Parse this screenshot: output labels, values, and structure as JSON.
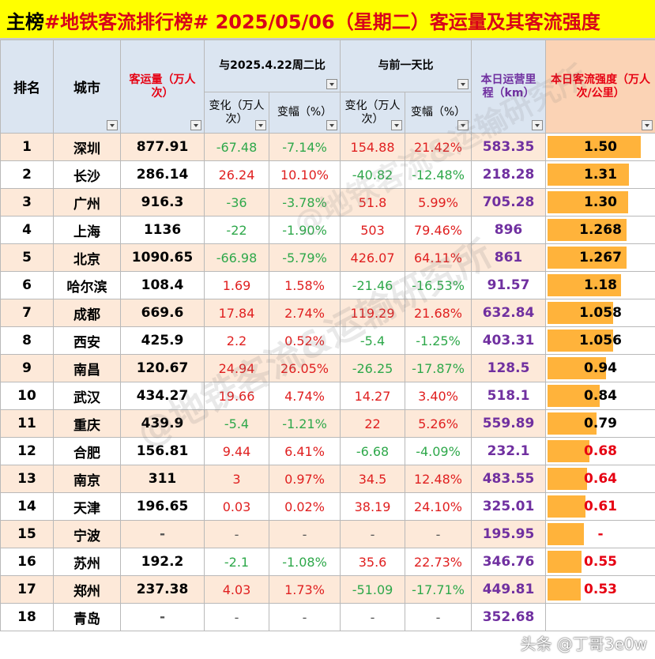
{
  "title": {
    "part1": "主榜",
    "part2": "#地铁客流排行榜# 2025/05/06（星期二）客运量及其客流强度"
  },
  "headers": {
    "rank": "排名",
    "city": "城市",
    "volume": "客运量（万人次）",
    "cmp1": "与2025.4.22周二比",
    "cmp2": "与前一天比",
    "change": "变化（万人次）",
    "pct": "变幅（%）",
    "mileage": "本日运营里程（km）",
    "intensity": "本日客流强度（万人次/公里）"
  },
  "rows": [
    {
      "rank": "1",
      "city": "深圳",
      "volume": "877.91",
      "c1": "-67.48",
      "p1": "-7.14%",
      "c2": "154.88",
      "p2": "21.42%",
      "mileage": "583.35",
      "intensity": "1.50",
      "level": 1.5,
      "ic": "#000000"
    },
    {
      "rank": "2",
      "city": "长沙",
      "volume": "286.14",
      "c1": "26.24",
      "p1": "10.10%",
      "c2": "-40.82",
      "p2": "-12.48%",
      "mileage": "218.28",
      "intensity": "1.31",
      "level": 1.31,
      "ic": "#000000"
    },
    {
      "rank": "3",
      "city": "广州",
      "volume": "916.3",
      "c1": "-36",
      "p1": "-3.78%",
      "c2": "51.8",
      "p2": "5.99%",
      "mileage": "705.28",
      "intensity": "1.30",
      "level": 1.3,
      "ic": "#000000"
    },
    {
      "rank": "4",
      "city": "上海",
      "volume": "1136",
      "c1": "-22",
      "p1": "-1.90%",
      "c2": "503",
      "p2": "79.46%",
      "mileage": "896",
      "intensity": "1.268",
      "level": 1.268,
      "ic": "#000000"
    },
    {
      "rank": "5",
      "city": "北京",
      "volume": "1090.65",
      "c1": "-66.98",
      "p1": "-5.79%",
      "c2": "426.07",
      "p2": "64.11%",
      "mileage": "861",
      "intensity": "1.267",
      "level": 1.267,
      "ic": "#000000"
    },
    {
      "rank": "6",
      "city": "哈尔滨",
      "volume": "108.4",
      "c1": "1.69",
      "p1": "1.58%",
      "c2": "-21.46",
      "p2": "-16.53%",
      "mileage": "91.57",
      "intensity": "1.18",
      "level": 1.18,
      "ic": "#000000"
    },
    {
      "rank": "7",
      "city": "成都",
      "volume": "669.6",
      "c1": "17.84",
      "p1": "2.74%",
      "c2": "119.29",
      "p2": "21.68%",
      "mileage": "632.84",
      "intensity": "1.058",
      "level": 1.058,
      "ic": "#000000"
    },
    {
      "rank": "8",
      "city": "西安",
      "volume": "425.9",
      "c1": "2.2",
      "p1": "0.52%",
      "c2": "-5.4",
      "p2": "-1.25%",
      "mileage": "403.31",
      "intensity": "1.056",
      "level": 1.056,
      "ic": "#000000"
    },
    {
      "rank": "9",
      "city": "南昌",
      "volume": "120.67",
      "c1": "24.94",
      "p1": "26.05%",
      "c2": "-26.25",
      "p2": "-17.87%",
      "mileage": "128.5",
      "intensity": "0.94",
      "level": 0.94,
      "ic": "#000000"
    },
    {
      "rank": "10",
      "city": "武汉",
      "volume": "434.27",
      "c1": "19.66",
      "p1": "4.74%",
      "c2": "14.27",
      "p2": "3.40%",
      "mileage": "518.1",
      "intensity": "0.84",
      "level": 0.84,
      "ic": "#000000"
    },
    {
      "rank": "11",
      "city": "重庆",
      "volume": "439.9",
      "c1": "-5.4",
      "p1": "-1.21%",
      "c2": "22",
      "p2": "5.26%",
      "mileage": "559.89",
      "intensity": "0.79",
      "level": 0.79,
      "ic": "#000000"
    },
    {
      "rank": "12",
      "city": "合肥",
      "volume": "156.81",
      "c1": "9.44",
      "p1": "6.41%",
      "c2": "-6.68",
      "p2": "-4.09%",
      "mileage": "232.1",
      "intensity": "0.68",
      "level": 0.68,
      "ic": "#e60012"
    },
    {
      "rank": "13",
      "city": "南京",
      "volume": "311",
      "c1": "3",
      "p1": "0.97%",
      "c2": "34.5",
      "p2": "12.48%",
      "mileage": "483.55",
      "intensity": "0.64",
      "level": 0.64,
      "ic": "#e60012"
    },
    {
      "rank": "14",
      "city": "天津",
      "volume": "196.65",
      "c1": "0.03",
      "p1": "0.02%",
      "c2": "38.19",
      "p2": "24.10%",
      "mileage": "325.01",
      "intensity": "0.61",
      "level": 0.61,
      "ic": "#e60012"
    },
    {
      "rank": "15",
      "city": "宁波",
      "volume": "-",
      "c1": "-",
      "p1": "-",
      "c2": "-",
      "p2": "-",
      "mileage": "195.95",
      "intensity": "-",
      "level": 0.58,
      "ic": "#e60012"
    },
    {
      "rank": "16",
      "city": "苏州",
      "volume": "192.2",
      "c1": "-2.1",
      "p1": "-1.08%",
      "c2": "35.6",
      "p2": "22.73%",
      "mileage": "346.76",
      "intensity": "0.55",
      "level": 0.55,
      "ic": "#e60012"
    },
    {
      "rank": "17",
      "city": "郑州",
      "volume": "237.38",
      "c1": "4.03",
      "p1": "1.73%",
      "c2": "-51.09",
      "p2": "-17.71%",
      "mileage": "449.81",
      "intensity": "0.53",
      "level": 0.53,
      "ic": "#e60012"
    },
    {
      "rank": "18",
      "city": "青岛",
      "volume": "-",
      "c1": "-",
      "p1": "-",
      "c2": "-",
      "p2": "-",
      "mileage": "352.68",
      "intensity": "",
      "level": 0,
      "ic": "#e60012"
    }
  ],
  "watermark": "@地铁客流&运输研究所",
  "credit": "头条 @丁哥3e0w"
}
